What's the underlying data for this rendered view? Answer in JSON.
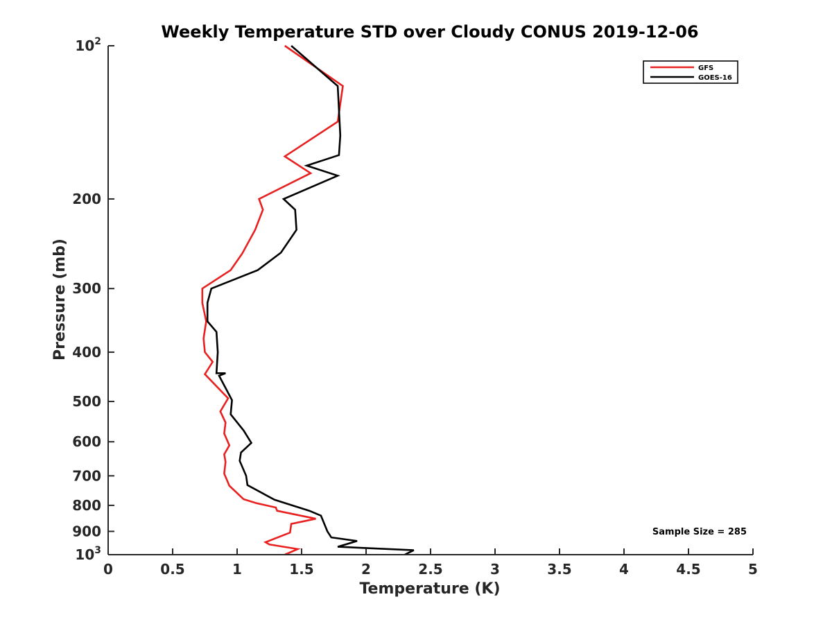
{
  "chart_data": {
    "type": "line",
    "title": "Weekly Temperature STD over Cloudy CONUS 2019-12-06",
    "xlabel": "Temperature (K)",
    "ylabel": "Pressure (mb)",
    "xlim": [
      0,
      5
    ],
    "ylim": [
      100,
      1000
    ],
    "yscale": "log",
    "y_reversed": true,
    "grid": false,
    "legend_position": "top-right",
    "x_ticks": [
      {
        "value": 0,
        "label": "0"
      },
      {
        "value": 0.5,
        "label": "0.5"
      },
      {
        "value": 1,
        "label": "1"
      },
      {
        "value": 1.5,
        "label": "1.5"
      },
      {
        "value": 2,
        "label": "2"
      },
      {
        "value": 2.5,
        "label": "2.5"
      },
      {
        "value": 3,
        "label": "3"
      },
      {
        "value": 3.5,
        "label": "3.5"
      },
      {
        "value": 4,
        "label": "4"
      },
      {
        "value": 4.5,
        "label": "4.5"
      },
      {
        "value": 5,
        "label": "5"
      }
    ],
    "y_ticks": [
      {
        "value": 100,
        "label": "10",
        "sup": "2"
      },
      {
        "value": 200,
        "label": "200",
        "sup": ""
      },
      {
        "value": 300,
        "label": "300",
        "sup": ""
      },
      {
        "value": 400,
        "label": "400",
        "sup": ""
      },
      {
        "value": 500,
        "label": "500",
        "sup": ""
      },
      {
        "value": 600,
        "label": "600",
        "sup": ""
      },
      {
        "value": 700,
        "label": "700",
        "sup": ""
      },
      {
        "value": 800,
        "label": "800",
        "sup": ""
      },
      {
        "value": 900,
        "label": "900",
        "sup": ""
      },
      {
        "value": 1000,
        "label": "10",
        "sup": "3"
      }
    ],
    "annotation": "Sample Size = 285",
    "series": [
      {
        "name": "GFS",
        "color": "#e8201f",
        "x": [
          1.37,
          1.82,
          1.78,
          1.37,
          1.57,
          1.17,
          1.2,
          1.14,
          1.04,
          0.95,
          0.73,
          0.73,
          0.76,
          0.74,
          0.75,
          0.81,
          0.75,
          0.93,
          0.87,
          0.91,
          0.9,
          0.94,
          0.9,
          0.91,
          0.9,
          0.94,
          1.05,
          1.15,
          1.3,
          1.31,
          1.61,
          1.42,
          1.41,
          1.22,
          1.25,
          1.47,
          1.37
        ],
        "y": [
          100,
          120,
          141,
          165,
          178,
          200,
          210,
          230,
          256,
          276,
          300,
          320,
          348,
          376,
          400,
          418,
          442,
          493,
          523,
          550,
          578,
          610,
          635,
          657,
          693,
          732,
          778,
          792,
          808,
          820,
          850,
          870,
          905,
          945,
          955,
          975,
          1000
        ]
      },
      {
        "name": "GOES-16",
        "color": "#000000",
        "x": [
          1.42,
          1.78,
          1.8,
          1.79,
          1.54,
          1.78,
          1.36,
          1.45,
          1.46,
          1.34,
          1.16,
          0.8,
          0.77,
          0.77,
          0.84,
          0.85,
          0.84,
          0.91,
          0.86,
          0.96,
          0.95,
          1.05,
          1.11,
          1.03,
          1.02,
          1.07,
          1.08,
          1.29,
          1.56,
          1.65,
          1.7,
          1.73,
          1.93,
          1.78,
          2.37,
          2.3
        ],
        "y": [
          100,
          120,
          150,
          164,
          172,
          180,
          200,
          210,
          230,
          255,
          276,
          300,
          320,
          348,
          365,
          400,
          440,
          440,
          445,
          497,
          530,
          570,
          603,
          630,
          654,
          700,
          730,
          780,
          820,
          838,
          900,
          925,
          940,
          965,
          980,
          1000
        ]
      }
    ]
  }
}
